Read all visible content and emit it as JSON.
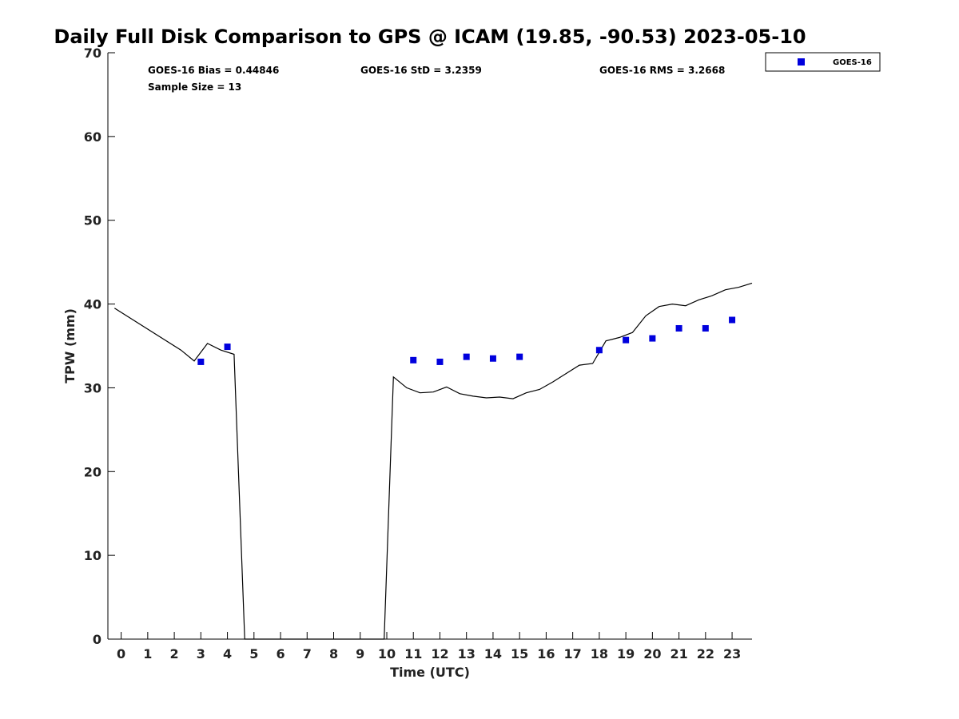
{
  "chart_data": {
    "type": "scatter",
    "title": "Daily Full Disk Comparison to GPS @ ICAM (19.85, -90.53) 2023-05-10",
    "xlabel": "Time (UTC)",
    "ylabel": "TPW (mm)",
    "xlim": [
      -0.5,
      23.75
    ],
    "ylim": [
      0,
      70
    ],
    "x_ticks": [
      0,
      1,
      2,
      3,
      4,
      5,
      6,
      7,
      8,
      9,
      10,
      11,
      12,
      13,
      14,
      15,
      16,
      17,
      18,
      19,
      20,
      21,
      22,
      23
    ],
    "y_ticks": [
      0,
      10,
      20,
      30,
      40,
      50,
      60,
      70
    ],
    "grid": false,
    "legend_position": "top-right",
    "series": [
      {
        "name": "GOES-16",
        "kind": "scatter",
        "marker": "square",
        "color": "#0000dd",
        "x": [
          3,
          4,
          11,
          12,
          13,
          14,
          15,
          18,
          19,
          20,
          21,
          22,
          23
        ],
        "y": [
          33.1,
          34.9,
          33.3,
          33.1,
          33.7,
          33.5,
          33.7,
          34.5,
          35.7,
          35.9,
          37.1,
          37.1,
          38.1
        ]
      },
      {
        "kind": "line",
        "color": "#000000",
        "x": [
          -0.25,
          2.25,
          2.75,
          3.25,
          3.75,
          4.25,
          4.65,
          9.9,
          10.25,
          10.75,
          11.25,
          11.75,
          12.25,
          12.75,
          13.25,
          13.75,
          14.25,
          14.75,
          15.25,
          15.75,
          16.25,
          16.75,
          17.25,
          17.75,
          18.25,
          18.75,
          19.25,
          19.75,
          20.25,
          20.75,
          21.25,
          21.75,
          22.25,
          22.75,
          23.25,
          23.75
        ],
        "y": [
          39.5,
          34.5,
          33.2,
          35.3,
          34.5,
          34.0,
          0,
          0,
          31.3,
          30.0,
          29.4,
          29.5,
          30.1,
          29.3,
          29.0,
          28.8,
          28.9,
          28.7,
          29.4,
          29.8,
          30.7,
          31.7,
          32.7,
          32.9,
          35.6,
          36.0,
          36.6,
          38.6,
          39.7,
          40.0,
          39.8,
          40.5,
          41.0,
          41.7,
          42.0,
          42.5
        ]
      }
    ],
    "annotations": {
      "bias": "GOES-16 Bias = 0.44846",
      "std": "GOES-16 StD = 3.2359",
      "rms": "GOES-16 RMS = 3.2668",
      "sample": "Sample Size = 13"
    }
  }
}
